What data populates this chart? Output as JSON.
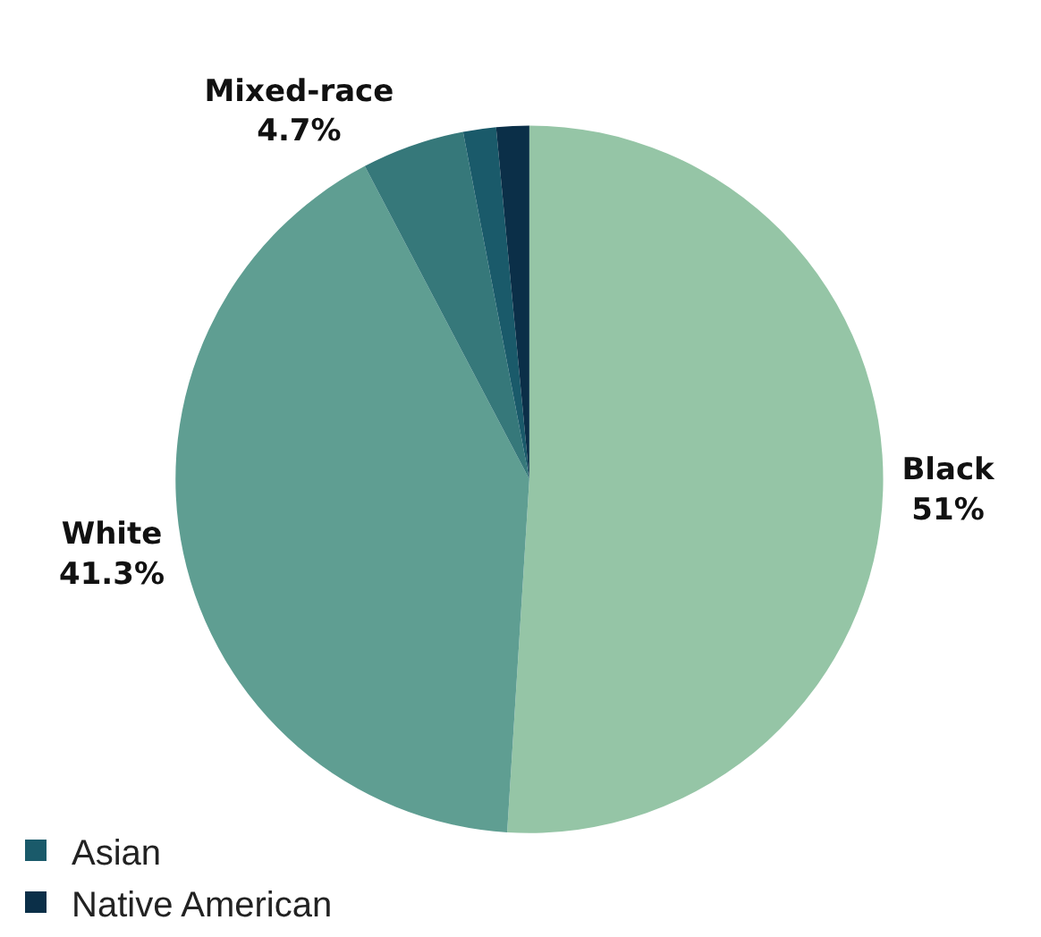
{
  "chart_data": {
    "type": "pie",
    "categories": [
      "Black",
      "White",
      "Mixed-race",
      "Asian",
      "Native American"
    ],
    "values": [
      51,
      41.3,
      4.7,
      1.5,
      1.5
    ],
    "value_labels": [
      "51%",
      "41.3%",
      "4.7%",
      null,
      null
    ],
    "colors": [
      "#95c5a6",
      "#5f9e92",
      "#36787a",
      "#1a5a6a",
      "#0b2f48"
    ],
    "legend": "bottom left"
  }
}
